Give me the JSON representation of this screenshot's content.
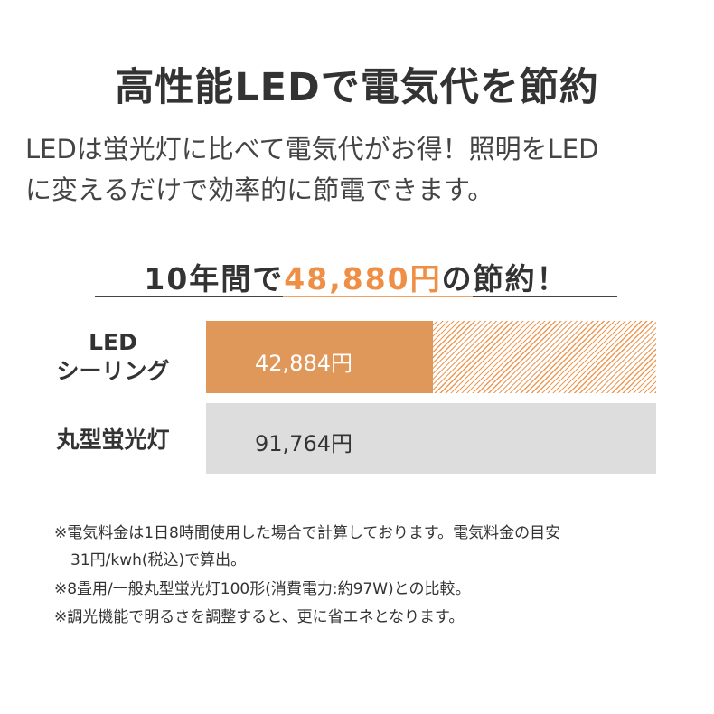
{
  "title": "高性能LEDで電気代を節約",
  "description": [
    "LEDは蛍光灯に比べて電気代がお得！照明をLED",
    "に変えるだけで効率的に節電できます。"
  ],
  "savings": {
    "prefix": "10年間で",
    "amount": "48,880円",
    "suffix": "の節約！"
  },
  "colors": {
    "accent": "#ee8f45",
    "led_bar": "#e0975a",
    "fluorescent_bar": "#dddddd"
  },
  "chart_data": {
    "type": "bar",
    "orientation": "horizontal",
    "categories": [
      "LED シーリング",
      "丸型蛍光灯"
    ],
    "category_labels": [
      [
        "LED",
        "シーリング"
      ],
      [
        "丸型蛍光灯"
      ]
    ],
    "values": [
      42884,
      91764
    ],
    "value_labels": [
      "42,884円",
      "91,764円"
    ],
    "unit": "円",
    "savings_value": 48880,
    "savings_shown_as": "hatched"
  },
  "notes": [
    "※電気料金は1日8時間使用した場合で計算しております。電気料金の目安",
    "31円/kwh(税込)で算出。",
    "※8畳用/一般丸型蛍光灯100形(消費電力:約97W)との比較。",
    "※調光機能で明るさを調整すると、更に省エネとなります。"
  ]
}
